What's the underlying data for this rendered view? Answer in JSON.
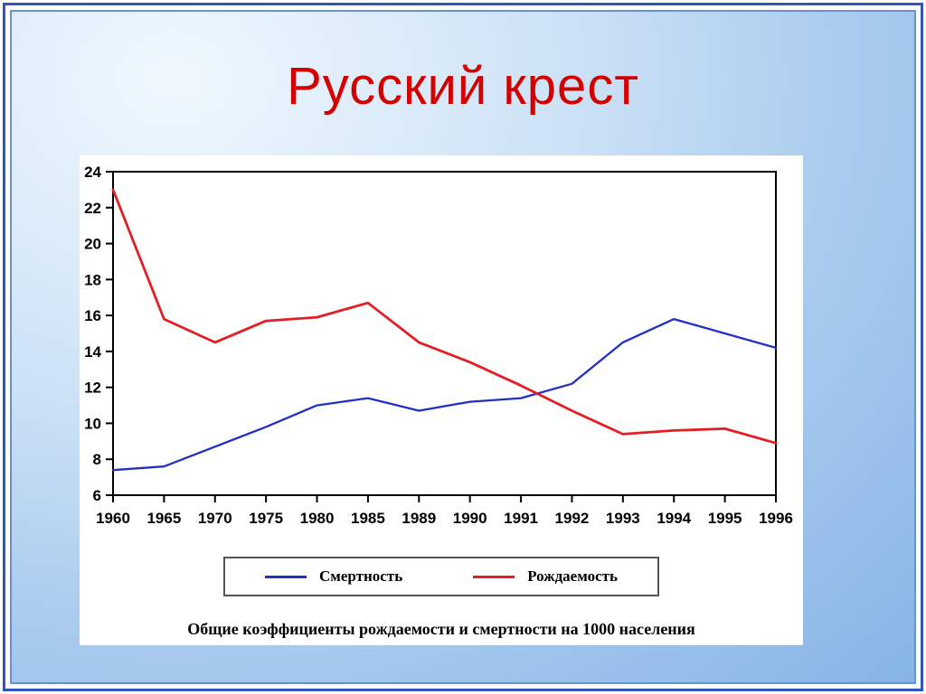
{
  "slide": {
    "title": "Русский крест",
    "title_color": "#d40000",
    "frame_color": "#2f55c0",
    "background_color": "#a9cbee"
  },
  "chart_data": {
    "type": "line",
    "title": "Русский крест",
    "xlabel": "",
    "ylabel": "",
    "categories": [
      "1960",
      "1965",
      "1970",
      "1975",
      "1980",
      "1985",
      "1989",
      "1990",
      "1991",
      "1992",
      "1993",
      "1994",
      "1995",
      "1996"
    ],
    "series": [
      {
        "name": "Смертность",
        "color": "#2330c0",
        "values": [
          7.4,
          7.6,
          8.7,
          9.8,
          11.0,
          11.4,
          10.7,
          11.2,
          11.4,
          12.2,
          14.5,
          15.8,
          15.0,
          14.2
        ]
      },
      {
        "name": "Рождаемость",
        "color": "#e31e24",
        "values": [
          23.0,
          15.8,
          14.5,
          15.7,
          15.9,
          16.7,
          14.5,
          13.4,
          12.1,
          10.7,
          9.4,
          9.6,
          9.7,
          8.9
        ]
      }
    ],
    "ylim": [
      6,
      24
    ],
    "ytick_step": 2,
    "grid": false,
    "legend_position": "bottom",
    "caption": "Общие коэффициенты рождаемости и смертности на 1000 населения"
  }
}
